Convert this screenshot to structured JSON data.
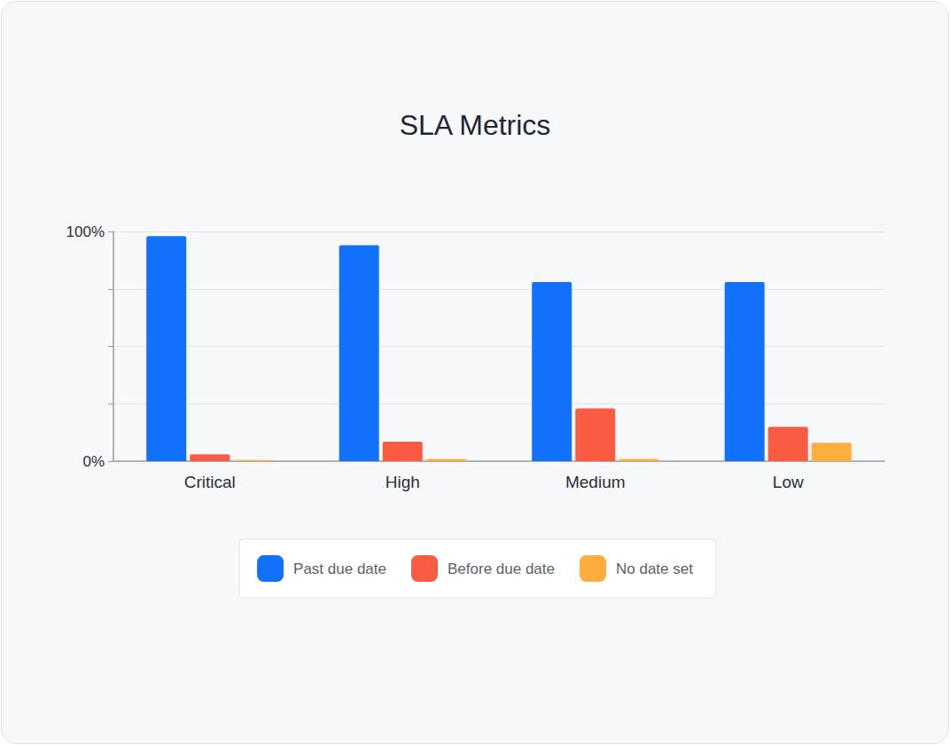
{
  "chart_data": {
    "type": "bar",
    "title": "SLA Metrics",
    "categories": [
      "Critical",
      "High",
      "Medium",
      "Low"
    ],
    "series": [
      {
        "name": "Past due date",
        "color": "#1271fb",
        "values": [
          98,
          94,
          78,
          78
        ]
      },
      {
        "name": "Before due date",
        "color": "#f95c42",
        "values": [
          3,
          8.5,
          23,
          15
        ]
      },
      {
        "name": "No date set",
        "color": "#ffad3d",
        "values": [
          0.5,
          1,
          1,
          8
        ]
      }
    ],
    "ylim": [
      0,
      100
    ],
    "yticks": [
      {
        "value": 0,
        "label": "0%"
      },
      {
        "value": 25,
        "label": null
      },
      {
        "value": 50,
        "label": null
      },
      {
        "value": 75,
        "label": null
      },
      {
        "value": 100,
        "label": "100%"
      }
    ],
    "grid": true,
    "legend": "bottom"
  }
}
